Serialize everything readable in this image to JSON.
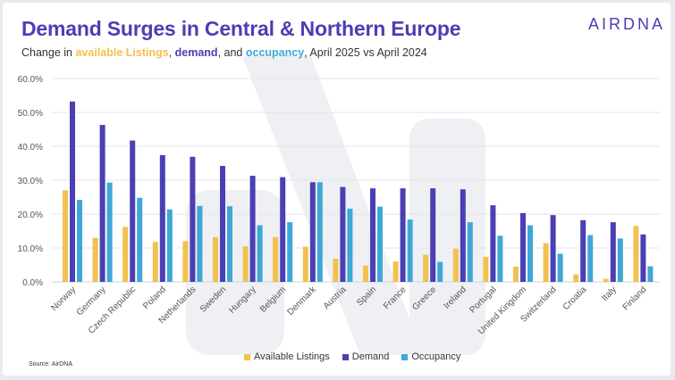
{
  "header": {
    "title": "Demand Surges in Central & Northern Europe",
    "subtitle_prefix": "Change in ",
    "subtitle_listings": "available Listings",
    "subtitle_sep1": ", ",
    "subtitle_demand": "demand",
    "subtitle_sep2": ", and ",
    "subtitle_occupancy": "occupancy",
    "subtitle_suffix": ", April 2025 vs April 2024",
    "logo": "AIRDNA"
  },
  "source": "Source: AirDNA",
  "colors": {
    "listings": "#f2c14e",
    "demand": "#4a3fb4",
    "occupancy": "#3fa7d6",
    "title": "#4a3fb4"
  },
  "chart_data": {
    "type": "bar",
    "title": "Demand Surges in Central & Northern Europe",
    "xlabel": "",
    "ylabel": "",
    "ylim": [
      0,
      60
    ],
    "yticks": [
      "0.0%",
      "10.0%",
      "20.0%",
      "30.0%",
      "40.0%",
      "50.0%",
      "60.0%"
    ],
    "grid": true,
    "legend_position": "bottom",
    "categories": [
      "Norway",
      "Germany",
      "Czech Republic",
      "Poland",
      "Netherlands",
      "Sweden",
      "Hungary",
      "Belgium",
      "Denmark",
      "Austria",
      "Spain",
      "France",
      "Greece",
      "Ireland",
      "Portugal",
      "United Kingdom",
      "Switzerland",
      "Croatia",
      "Italy",
      "Finland"
    ],
    "series": [
      {
        "name": "Available Listings",
        "color_key": "listings",
        "values": [
          27.0,
          13.0,
          16.2,
          11.8,
          12.0,
          13.2,
          10.5,
          13.2,
          10.4,
          6.8,
          4.8,
          6.0,
          8.0,
          9.8,
          7.4,
          4.5,
          11.4,
          2.2,
          0.9,
          16.5
        ]
      },
      {
        "name": "Demand",
        "color_key": "demand",
        "values": [
          53.2,
          46.3,
          41.7,
          37.4,
          36.9,
          34.2,
          31.3,
          30.9,
          29.4,
          28.0,
          27.6,
          27.6,
          27.6,
          27.3,
          22.6,
          20.3,
          19.7,
          18.2,
          17.6,
          14.0
        ]
      },
      {
        "name": "Occupancy",
        "color_key": "occupancy",
        "values": [
          24.2,
          29.3,
          24.8,
          21.4,
          22.4,
          22.3,
          16.7,
          17.6,
          29.4,
          21.6,
          22.2,
          18.4,
          5.9,
          17.6,
          13.6,
          16.7,
          8.3,
          13.8,
          12.8,
          4.6
        ]
      }
    ]
  }
}
